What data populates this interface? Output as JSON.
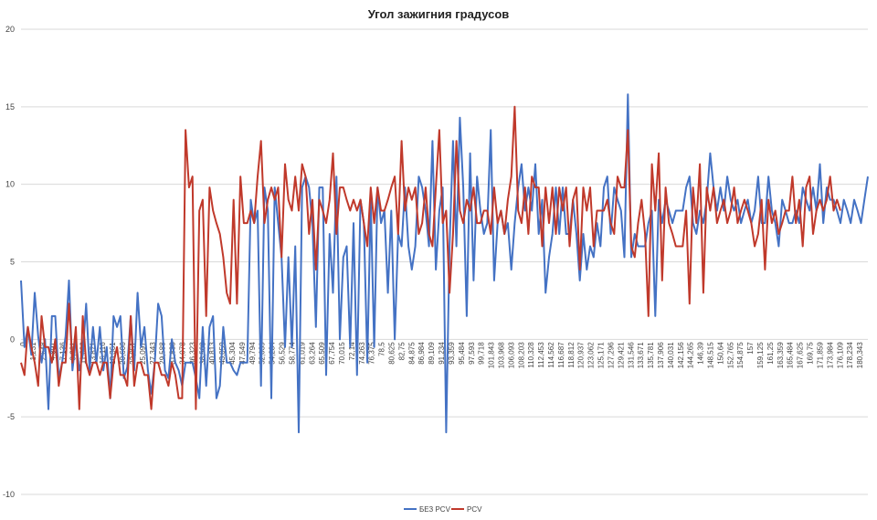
{
  "chart_data": {
    "type": "line",
    "title": "Угол зажигния градусов",
    "xlabel": "",
    "ylabel": "",
    "ylim": [
      -10,
      20
    ],
    "yticks": [
      -10,
      -5,
      0,
      5,
      10,
      15,
      20
    ],
    "grid": true,
    "legend_position": "bottom",
    "x_tick_labels": [
      "0",
      "1,231",
      "2,648",
      "4,891",
      "7,136",
      "9,381",
      "11,626",
      "13,871",
      "16,116",
      "18,361",
      "20,606",
      "22,851",
      "25,097",
      "27,343",
      "29,588",
      "31,833",
      "34,078",
      "36,323",
      "38,568",
      "40,813",
      "43,059",
      "45,304",
      "47,549",
      "49,794",
      "52,039",
      "54,284",
      "56,529",
      "58,774",
      "61,019",
      "63,264",
      "65,509",
      "67,754",
      "70,015",
      "72,14",
      "74,263",
      "76,375",
      "78,5",
      "80,625",
      "82,75",
      "84,875",
      "86,984",
      "89,109",
      "91,234",
      "93,359",
      "95,484",
      "97,593",
      "99,718",
      "101,843",
      "103,968",
      "106,093",
      "108,203",
      "110,328",
      "112,453",
      "114,562",
      "116,687",
      "118,812",
      "120,937",
      "123,062",
      "125,171",
      "127,296",
      "129,421",
      "131,546",
      "133,671",
      "135,781",
      "137,906",
      "140,031",
      "142,156",
      "144,265",
      "146,39",
      "148,515",
      "150,64",
      "152,765",
      "154,875",
      "157",
      "159,125",
      "161,25",
      "163,359",
      "165,484",
      "167,625",
      "169,75",
      "171,859",
      "173,984",
      "176,109",
      "178,234",
      "180,343"
    ],
    "series": [
      {
        "name": "БЕЗ PCV",
        "color": "#4472c4",
        "values": [
          3.8,
          -0.5,
          0.8,
          -1.0,
          3.0,
          0.2,
          -1.5,
          0.0,
          -4.5,
          1.5,
          1.5,
          -2.5,
          -1.5,
          0.2,
          3.8,
          -2.0,
          0.0,
          -2.0,
          -1.0,
          2.3,
          -2.0,
          0.8,
          -1.5,
          0.8,
          -2.0,
          -0.5,
          -3.8,
          1.5,
          0.8,
          1.5,
          -2.5,
          -1.8,
          1.5,
          -2.0,
          3.0,
          -0.5,
          0.8,
          -2.0,
          -3.5,
          -1.5,
          2.3,
          1.5,
          -2.0,
          -2.5,
          0.0,
          -1.5,
          -2.0,
          -3.0,
          -1.5,
          -1.5,
          -1.5,
          -2.5,
          -3.8,
          0.8,
          -3.0,
          0.8,
          1.5,
          -3.8,
          -3.0,
          0.8,
          -1.5,
          -1.5,
          -2.0,
          -2.3,
          -1.5,
          -1.5,
          -1.5,
          9.0,
          7.5,
          8.3,
          -3.0,
          9.8,
          8.3,
          -3.8,
          9.8,
          7.5,
          5.3,
          -0.5,
          5.3,
          -0.5,
          6.0,
          -6.0,
          9.8,
          10.5,
          9.8,
          7.5,
          0.8,
          9.8,
          9.8,
          -2.3,
          6.8,
          3.0,
          10.5,
          0.0,
          5.3,
          6.0,
          -0.5,
          7.5,
          -2.3,
          9.0,
          7.5,
          -1.5,
          9.0,
          -0.5,
          9.8,
          7.5,
          8.3,
          3.0,
          8.3,
          0.0,
          6.8,
          6.0,
          9.8,
          6.0,
          4.5,
          6.0,
          10.5,
          9.8,
          8.3,
          6.0,
          12.8,
          4.5,
          8.3,
          9.8,
          -6.0,
          6.0,
          12.8,
          6.0,
          14.3,
          9.8,
          1.5,
          12.0,
          3.8,
          10.5,
          8.3,
          6.8,
          7.5,
          13.5,
          3.8,
          7.5,
          8.3,
          6.8,
          7.5,
          4.5,
          7.5,
          9.8,
          11.3,
          8.3,
          9.8,
          8.3,
          11.3,
          6.8,
          9.0,
          3.0,
          5.3,
          6.8,
          9.8,
          6.8,
          9.8,
          6.8,
          6.8,
          9.0,
          6.8,
          3.8,
          6.8,
          4.5,
          6.0,
          5.3,
          7.5,
          6.0,
          9.8,
          10.5,
          6.8,
          9.8,
          9.0,
          8.3,
          5.3,
          15.8,
          5.3,
          6.8,
          6.0,
          6.0,
          6.0,
          7.5,
          8.3,
          1.5,
          9.0,
          7.5,
          9.0,
          8.3,
          7.5,
          8.3,
          8.3,
          8.3,
          9.8,
          10.5,
          7.5,
          6.8,
          8.3,
          7.5,
          9.0,
          12.0,
          9.8,
          8.3,
          9.8,
          8.3,
          10.5,
          9.0,
          8.3,
          9.0,
          7.5,
          8.3,
          9.0,
          7.5,
          8.3,
          10.5,
          7.5,
          7.5,
          10.5,
          8.3,
          7.5,
          6.0,
          9.0,
          8.3,
          7.5,
          7.5,
          8.3,
          7.5,
          9.8,
          9.0,
          8.3,
          9.8,
          8.3,
          11.3,
          7.5,
          9.8,
          9.0,
          9.0,
          8.3,
          7.5,
          9.0,
          8.3,
          7.5,
          9.0,
          8.3,
          7.5,
          9.0,
          10.5
        ]
      },
      {
        "name": "PCV",
        "color": "#c0392b",
        "values": [
          -1.5,
          -2.3,
          0.8,
          -0.5,
          -1.5,
          -3.0,
          1.5,
          -0.5,
          -0.5,
          -1.5,
          0.0,
          -3.0,
          -1.5,
          -1.5,
          2.3,
          -1.5,
          0.8,
          -4.5,
          1.5,
          -1.5,
          -2.3,
          -1.5,
          -1.5,
          -2.3,
          -1.5,
          -1.5,
          -3.8,
          -1.5,
          -0.5,
          -2.3,
          -2.3,
          -3.0,
          1.5,
          -3.0,
          -1.5,
          -1.5,
          -2.3,
          -2.3,
          -4.5,
          -1.5,
          -1.5,
          -2.3,
          -2.3,
          -3.0,
          -1.5,
          -2.3,
          -3.8,
          -3.8,
          13.5,
          9.8,
          10.5,
          -4.5,
          8.3,
          9.0,
          1.5,
          9.8,
          8.3,
          7.5,
          6.8,
          5.3,
          3.0,
          2.3,
          9.0,
          2.3,
          10.5,
          7.5,
          7.5,
          8.3,
          7.5,
          10.5,
          12.8,
          7.5,
          9.0,
          9.8,
          9.0,
          9.8,
          5.3,
          11.3,
          9.0,
          8.3,
          10.5,
          8.3,
          11.3,
          10.5,
          6.8,
          9.0,
          4.5,
          9.0,
          8.3,
          7.5,
          9.0,
          12.0,
          6.8,
          9.8,
          9.8,
          9.0,
          8.3,
          9.0,
          8.3,
          9.0,
          7.5,
          6.0,
          9.8,
          7.5,
          9.8,
          8.3,
          8.3,
          9.0,
          9.8,
          10.5,
          6.8,
          12.8,
          8.3,
          9.8,
          9.0,
          9.8,
          6.8,
          7.5,
          9.8,
          6.8,
          6.0,
          9.8,
          13.5,
          7.5,
          8.3,
          3.0,
          6.8,
          12.8,
          8.3,
          7.5,
          9.0,
          8.3,
          9.8,
          7.5,
          7.5,
          8.3,
          8.3,
          6.8,
          9.8,
          7.5,
          8.3,
          6.8,
          9.0,
          10.5,
          15.0,
          8.3,
          7.5,
          9.8,
          6.8,
          10.5,
          9.8,
          9.8,
          6.0,
          9.8,
          7.5,
          9.8,
          6.8,
          9.8,
          8.3,
          9.8,
          6.0,
          9.0,
          9.8,
          4.5,
          9.8,
          8.3,
          9.8,
          6.0,
          8.3,
          8.3,
          8.3,
          9.0,
          7.5,
          6.8,
          10.5,
          9.8,
          9.8,
          13.5,
          6.0,
          5.3,
          7.5,
          9.0,
          6.8,
          1.5,
          11.3,
          8.3,
          12.0,
          3.8,
          9.8,
          7.5,
          6.8,
          6.0,
          6.0,
          6.0,
          8.3,
          2.3,
          9.8,
          7.5,
          11.3,
          3.0,
          9.8,
          8.3,
          9.8,
          7.5,
          8.3,
          9.0,
          7.5,
          8.3,
          9.8,
          7.5,
          8.3,
          9.0,
          8.3,
          7.5,
          6.0,
          6.8,
          9.0,
          4.5,
          9.0,
          7.5,
          8.3,
          6.8,
          7.5,
          8.3,
          8.3,
          10.5,
          7.5,
          9.0,
          6.0,
          9.8,
          10.5,
          6.8,
          8.3,
          9.0,
          8.3,
          9.0,
          10.5,
          8.3,
          9.0,
          8.3
        ]
      }
    ]
  }
}
